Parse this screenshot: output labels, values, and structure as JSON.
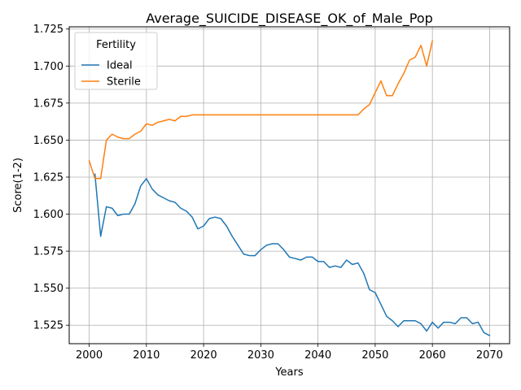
{
  "chart_data": {
    "type": "line",
    "title": "Average_SUICIDE_DISEASE_OK_of_Male_Pop",
    "xlabel": "Years",
    "ylabel": "Score(1-2)",
    "xlim": [
      1996.5,
      2073.5
    ],
    "ylim": [
      1.5125,
      1.7265
    ],
    "xticks": [
      2000,
      2010,
      2020,
      2030,
      2040,
      2050,
      2060,
      2070
    ],
    "yticks": [
      1.525,
      1.55,
      1.575,
      1.6,
      1.625,
      1.65,
      1.675,
      1.7,
      1.725
    ],
    "xtick_labels": [
      "2000",
      "2010",
      "2020",
      "2030",
      "2040",
      "2050",
      "2060",
      "2070"
    ],
    "ytick_labels": [
      "1.525",
      "1.550",
      "1.575",
      "1.600",
      "1.625",
      "1.650",
      "1.675",
      "1.700",
      "1.725"
    ],
    "grid": true,
    "legend": {
      "title": "Fertility",
      "placement": "upper-left"
    },
    "series": [
      {
        "name": "Ideal",
        "color": "#1f77b4",
        "x": [
          2001,
          2002,
          2003,
          2004,
          2005,
          2006,
          2007,
          2008,
          2009,
          2010,
          2011,
          2012,
          2013,
          2014,
          2015,
          2016,
          2017,
          2018,
          2019,
          2020,
          2021,
          2022,
          2023,
          2024,
          2025,
          2026,
          2027,
          2028,
          2029,
          2030,
          2031,
          2032,
          2033,
          2034,
          2035,
          2036,
          2037,
          2038,
          2039,
          2040,
          2041,
          2042,
          2043,
          2044,
          2045,
          2046,
          2047,
          2048,
          2049,
          2050,
          2051,
          2052,
          2053,
          2054,
          2055,
          2056,
          2057,
          2058,
          2059,
          2060,
          2061,
          2062,
          2063,
          2064,
          2065,
          2066,
          2067,
          2068,
          2069,
          2070
        ],
        "y": [
          1.627,
          1.585,
          1.605,
          1.604,
          1.599,
          1.6,
          1.6,
          1.607,
          1.619,
          1.624,
          1.617,
          1.613,
          1.611,
          1.609,
          1.608,
          1.604,
          1.602,
          1.598,
          1.59,
          1.592,
          1.597,
          1.598,
          1.597,
          1.592,
          1.585,
          1.579,
          1.573,
          1.572,
          1.572,
          1.576,
          1.579,
          1.58,
          1.58,
          1.576,
          1.571,
          1.57,
          1.569,
          1.571,
          1.571,
          1.568,
          1.568,
          1.564,
          1.565,
          1.564,
          1.569,
          1.566,
          1.567,
          1.56,
          1.549,
          1.547,
          1.539,
          1.531,
          1.528,
          1.524,
          1.528,
          1.528,
          1.528,
          1.526,
          1.521,
          1.527,
          1.523,
          1.527,
          1.527,
          1.526,
          1.53,
          1.53,
          1.526,
          1.527,
          1.52,
          1.518
        ]
      },
      {
        "name": "Sterile",
        "color": "#ff7f0e",
        "x": [
          2000,
          2001,
          2002,
          2003,
          2004,
          2005,
          2006,
          2007,
          2008,
          2009,
          2010,
          2011,
          2012,
          2013,
          2014,
          2015,
          2016,
          2017,
          2018,
          2019,
          2020,
          2021,
          2022,
          2023,
          2024,
          2025,
          2026,
          2027,
          2028,
          2029,
          2030,
          2031,
          2032,
          2033,
          2034,
          2035,
          2036,
          2037,
          2038,
          2039,
          2040,
          2041,
          2042,
          2043,
          2044,
          2045,
          2046,
          2047,
          2048,
          2049,
          2050,
          2051,
          2052,
          2053,
          2054,
          2055,
          2056,
          2057,
          2058,
          2059,
          2060
        ],
        "y": [
          1.636,
          1.624,
          1.624,
          1.65,
          1.654,
          1.652,
          1.651,
          1.651,
          1.654,
          1.656,
          1.661,
          1.66,
          1.662,
          1.663,
          1.664,
          1.663,
          1.666,
          1.666,
          1.667,
          1.667,
          1.667,
          1.667,
          1.667,
          1.667,
          1.667,
          1.667,
          1.667,
          1.667,
          1.667,
          1.667,
          1.667,
          1.667,
          1.667,
          1.667,
          1.667,
          1.667,
          1.667,
          1.667,
          1.667,
          1.667,
          1.667,
          1.667,
          1.667,
          1.667,
          1.667,
          1.667,
          1.667,
          1.667,
          1.671,
          1.674,
          1.682,
          1.69,
          1.68,
          1.68,
          1.688,
          1.695,
          1.704,
          1.706,
          1.714,
          1.7,
          1.717
        ]
      }
    ]
  }
}
